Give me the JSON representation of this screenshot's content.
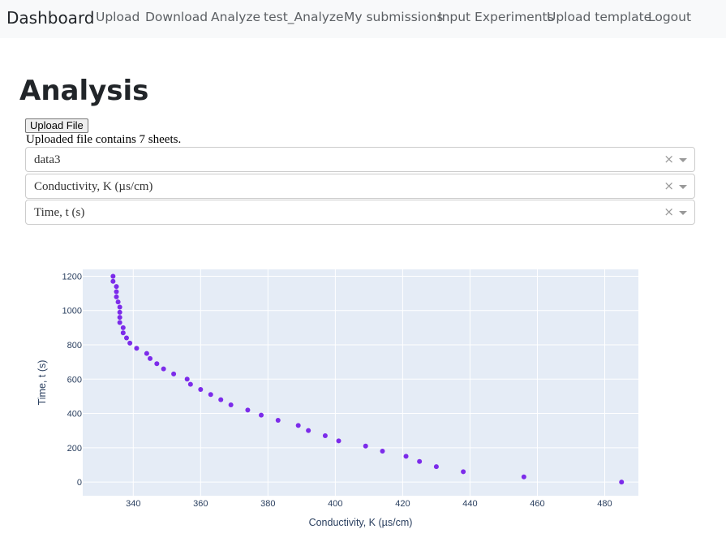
{
  "navbar": {
    "brand": "Dashboard",
    "links": [
      "Upload",
      "Download",
      "Analyze",
      "test_Analyze",
      "My submissions",
      "Input Experiments",
      "Upload template",
      "Logout"
    ]
  },
  "page": {
    "title": "Analysis",
    "upload_button": "Upload File",
    "upload_info": "Uploaded file contains 7 sheets."
  },
  "dropdowns": [
    {
      "value": "data3",
      "clear": "×"
    },
    {
      "value": "Conductivity, K (µs/cm)",
      "clear": "×"
    },
    {
      "value": "Time, t (s)",
      "clear": "×"
    }
  ],
  "colors": {
    "marker": "#7c2bea",
    "plot_bg": "#e5ecf6",
    "grid": "#ffffff",
    "navbar_bg": "#f8f9fa"
  },
  "chart_data": {
    "type": "scatter",
    "xlabel": "Conductivity, K (µs/cm)",
    "ylabel": "Time, t (s)",
    "xlim": [
      325,
      490
    ],
    "ylim": [
      -80,
      1240
    ],
    "xticks": [
      340,
      360,
      380,
      400,
      420,
      440,
      460,
      480
    ],
    "yticks": [
      0,
      200,
      400,
      600,
      800,
      1000,
      1200
    ],
    "grid": true,
    "x": [
      485,
      456,
      438,
      430,
      425,
      421,
      414,
      409,
      401,
      397,
      392,
      389,
      383,
      378,
      374,
      369,
      366,
      363,
      360,
      357,
      356,
      352,
      349,
      347,
      345,
      344,
      341,
      339,
      338,
      337,
      337,
      336,
      336,
      336,
      336,
      335.5,
      335,
      335,
      335,
      334,
      334
    ],
    "y": [
      0,
      30,
      60,
      90,
      120,
      150,
      180,
      210,
      240,
      270,
      300,
      330,
      360,
      390,
      420,
      450,
      480,
      510,
      540,
      570,
      600,
      630,
      660,
      690,
      720,
      750,
      780,
      810,
      840,
      870,
      900,
      930,
      960,
      990,
      1020,
      1050,
      1080,
      1110,
      1140,
      1170,
      1200
    ]
  }
}
